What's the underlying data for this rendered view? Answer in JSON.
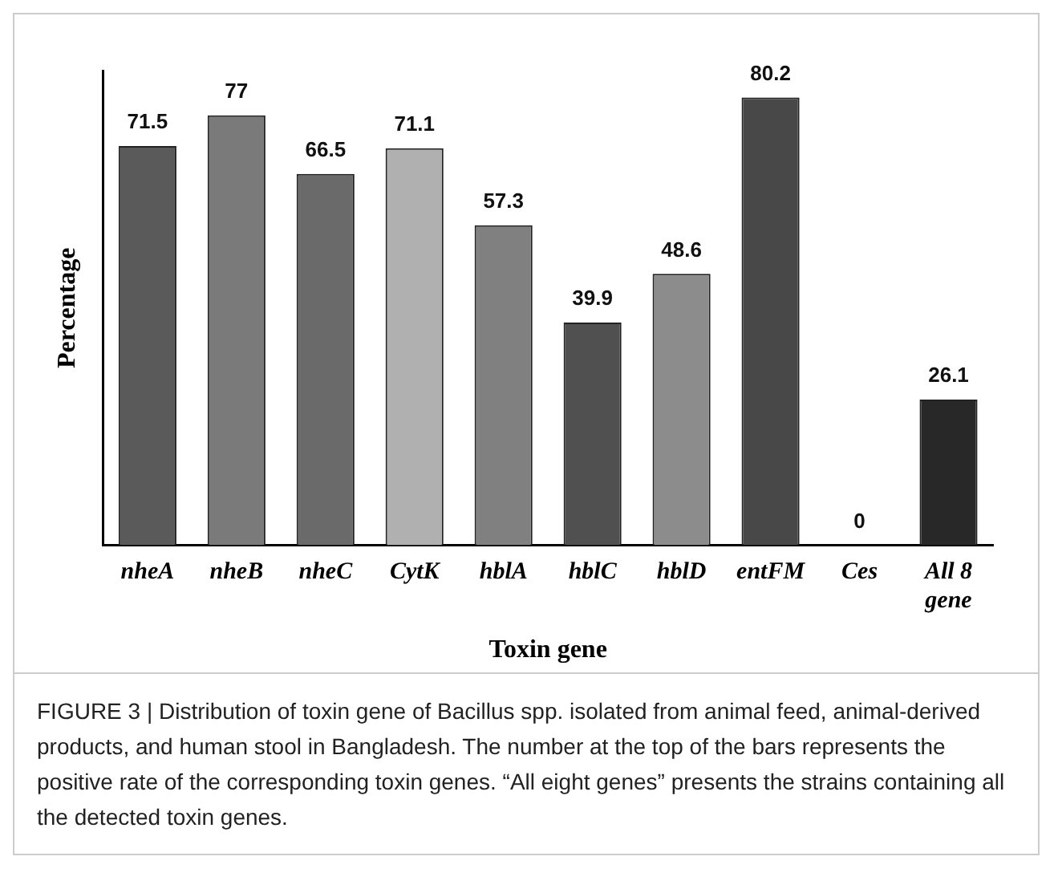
{
  "chart_data": {
    "type": "bar",
    "ylabel": "Percentage",
    "xlabel": "Toxin gene",
    "categories": [
      "nheA",
      "nheB",
      "nheC",
      "CytK",
      "hblA",
      "hblC",
      "hblD",
      "entFM",
      "Ces",
      "All 8 gene"
    ],
    "values": [
      71.5,
      77,
      66.5,
      71.1,
      57.3,
      39.9,
      48.6,
      80.2,
      0,
      26.1
    ],
    "colors": [
      "#5a5a5a",
      "#7a7a7a",
      "#6a6a6a",
      "#b0b0b0",
      "#808080",
      "#505050",
      "#8c8c8c",
      "#484848",
      "#505050",
      "#282828"
    ],
    "ylim": [
      0,
      85
    ],
    "data_labels": true,
    "grid": false,
    "legend": false,
    "annotations": [
      "FIGURE 3 | Distribution of toxin gene of Bacillus spp. isolated from animal feed, animal-derived products, and human stool in Bangladesh. The number at the top of the bars represents the positive rate of the corresponding toxin genes. “All eight genes” presents the strains containing all the detected toxin genes."
    ]
  }
}
